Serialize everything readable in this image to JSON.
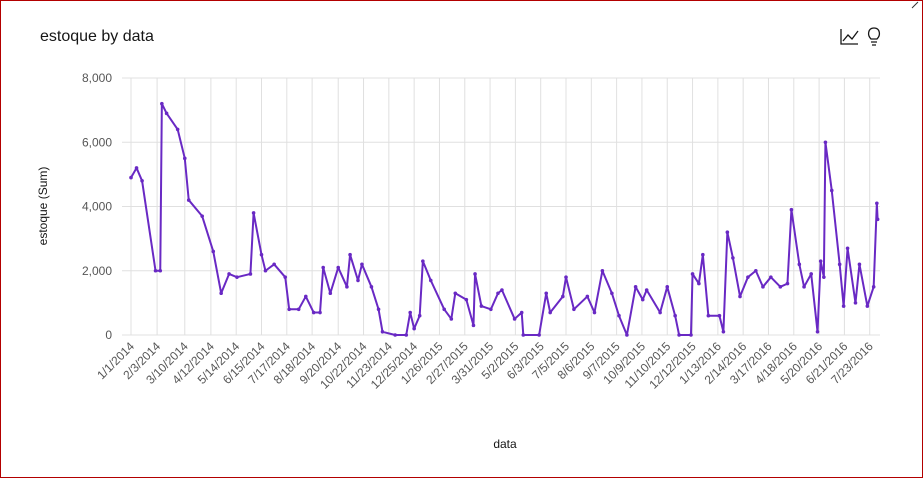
{
  "chart_data": {
    "type": "line",
    "title": "estoque by data",
    "x_label": "data",
    "y_label": "estoque (Sum)",
    "x": [
      "1/1/2014",
      "1/8/2014",
      "1/15/2014",
      "2/1/2014",
      "2/7/2014",
      "2/9/2014",
      "2/15/2014",
      "3/1/2014",
      "3/10/2014",
      "3/15/2014",
      "4/1/2014",
      "4/15/2014",
      "4/25/2014",
      "5/5/2014",
      "5/15/2014",
      "6/1/2014",
      "6/5/2014",
      "6/15/2014",
      "6/20/2014",
      "7/1/2014",
      "7/15/2014",
      "7/20/2014",
      "8/1/2014",
      "8/10/2014",
      "8/20/2014",
      "8/28/2014",
      "9/1/2014",
      "9/10/2014",
      "9/20/2014",
      "10/1/2014",
      "10/5/2014",
      "10/15/2014",
      "10/20/2014",
      "11/1/2014",
      "11/10/2014",
      "11/15/2014",
      "12/1/2014",
      "12/15/2014",
      "12/20/2014",
      "12/25/2014",
      "1/1/2015",
      "1/5/2015",
      "1/15/2015",
      "2/1/2015",
      "2/10/2015",
      "2/15/2015",
      "3/1/2015",
      "3/10/2015",
      "3/12/2015",
      "3/20/2015",
      "4/1/2015",
      "4/10/2015",
      "4/15/2015",
      "5/1/2015",
      "5/10/2015",
      "5/12/2015",
      "6/1/2015",
      "6/10/2015",
      "6/15/2015",
      "7/1/2015",
      "7/5/2015",
      "7/15/2015",
      "8/1/2015",
      "8/10/2015",
      "8/20/2015",
      "9/1/2015",
      "9/10/2015",
      "9/20/2015",
      "10/1/2015",
      "10/10/2015",
      "10/15/2015",
      "11/1/2015",
      "11/10/2015",
      "11/20/2015",
      "11/25/2015",
      "12/10/2015",
      "12/12/2015",
      "12/20/2015",
      "12/25/2015",
      "1/1/2016",
      "1/15/2016",
      "1/20/2016",
      "1/25/2016",
      "2/1/2016",
      "2/10/2016",
      "2/20/2016",
      "3/1/2016",
      "3/10/2016",
      "3/20/2016",
      "4/1/2016",
      "4/10/2016",
      "4/15/2016",
      "4/25/2016",
      "5/1/2016",
      "5/10/2016",
      "5/18/2016",
      "5/22/2016",
      "5/26/2016",
      "5/28/2016",
      "6/5/2016",
      "6/15/2016",
      "6/20/2016",
      "6/25/2016",
      "7/5/2016",
      "7/10/2016",
      "7/20/2016",
      "7/28/2016",
      "8/1/2016",
      "8/2/2016"
    ],
    "series": [
      {
        "name": "estoque",
        "color": "#6929c4",
        "values": [
          4900,
          5200,
          4800,
          2000,
          2000,
          7200,
          6900,
          6400,
          5500,
          4200,
          3700,
          2600,
          1300,
          1900,
          1800,
          1900,
          3800,
          2500,
          2000,
          2200,
          1800,
          800,
          800,
          1200,
          700,
          700,
          2100,
          1300,
          2100,
          1500,
          2500,
          1700,
          2200,
          1500,
          800,
          100,
          0,
          0,
          700,
          200,
          600,
          2300,
          1700,
          800,
          500,
          1300,
          1100,
          300,
          1900,
          900,
          800,
          1300,
          1400,
          500,
          700,
          0,
          0,
          1300,
          700,
          1200,
          1800,
          800,
          1200,
          700,
          2000,
          1300,
          600,
          0,
          1500,
          1100,
          1400,
          700,
          1500,
          600,
          0,
          0,
          1900,
          1600,
          2500,
          600,
          600,
          100,
          3200,
          2400,
          1200,
          1800,
          2000,
          1500,
          1800,
          1500,
          1600,
          3900,
          2200,
          1500,
          1900,
          100,
          2300,
          1800,
          6000,
          4500,
          2200,
          900,
          2700,
          1000,
          2200,
          900,
          1500,
          4100,
          3600
        ]
      }
    ],
    "xlim": [
      "1/1/2014",
      "8/5/2016"
    ],
    "xticks": [
      "1/1/2014",
      "2/3/2014",
      "3/10/2014",
      "4/12/2014",
      "5/14/2014",
      "6/15/2014",
      "7/17/2014",
      "8/18/2014",
      "9/20/2014",
      "10/22/2014",
      "11/23/2014",
      "12/25/2014",
      "1/26/2015",
      "2/27/2015",
      "3/31/2015",
      "5/2/2015",
      "6/3/2015",
      "7/5/2015",
      "8/6/2015",
      "9/7/2015",
      "10/9/2015",
      "11/10/2015",
      "12/12/2015",
      "1/13/2016",
      "2/14/2016",
      "3/17/2016",
      "4/18/2016",
      "5/20/2016",
      "6/21/2016",
      "7/23/2016"
    ],
    "ylim": [
      0,
      8000
    ],
    "yticks": [
      0,
      {
        "value": 2000,
        "label": "2,000"
      },
      {
        "value": 4000,
        "label": "4,000"
      },
      {
        "value": 6000,
        "label": "6,000"
      },
      {
        "value": 8000,
        "label": "8,000"
      }
    ],
    "grid": true
  }
}
